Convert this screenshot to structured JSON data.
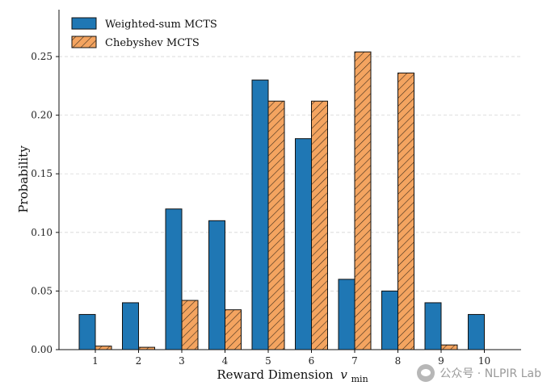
{
  "chart_data": {
    "type": "bar",
    "categories": [
      "1",
      "2",
      "3",
      "4",
      "5",
      "6",
      "7",
      "8",
      "9",
      "10"
    ],
    "series": [
      {
        "name": "Weighted-sum MCTS",
        "values": [
          0.03,
          0.04,
          0.12,
          0.11,
          0.23,
          0.18,
          0.06,
          0.05,
          0.04,
          0.03
        ],
        "color": "#1f77b4",
        "pattern": "solid"
      },
      {
        "name": "Chebyshev MCTS",
        "values": [
          0.003,
          0.002,
          0.042,
          0.034,
          0.212,
          0.212,
          0.254,
          0.236,
          0.004,
          0.0
        ],
        "color": "#f4a460",
        "pattern": "hatch"
      }
    ],
    "xlabel": "Reward Dimension",
    "xlabel_var": "v",
    "xlabel_sub": "min",
    "ylabel": "Probability",
    "ylim": [
      0,
      0.29
    ],
    "yticks": [
      0.0,
      0.05,
      0.1,
      0.15,
      0.2,
      0.25
    ],
    "ytick_labels": [
      "0.00",
      "0.05",
      "0.10",
      "0.15",
      "0.20",
      "0.25"
    ],
    "grid": "horizontal-dashed",
    "legend_position": "top-left"
  },
  "watermark": {
    "text": "公众号 · NLPIR Lab",
    "icon": "wechat-icon"
  }
}
